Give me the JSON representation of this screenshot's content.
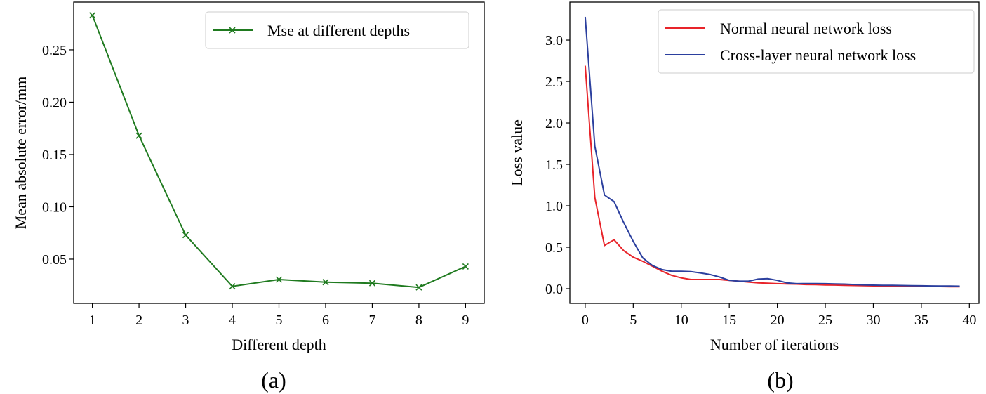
{
  "chart_data": [
    {
      "type": "line",
      "caption": "(a)",
      "xlabel": "Different depth",
      "ylabel": "Mean absolute error/mm",
      "xlim": [
        0.6,
        9.4
      ],
      "ylim": [
        0.0077,
        0.2956
      ],
      "xticks": [
        1,
        2,
        3,
        4,
        5,
        6,
        7,
        8,
        9
      ],
      "yticks": [
        0.05,
        0.1,
        0.15,
        0.2,
        0.25
      ],
      "ytick_labels": [
        "0.05",
        "0.10",
        "0.15",
        "0.20",
        "0.25"
      ],
      "grid": false,
      "legend_position": "top-right",
      "series": [
        {
          "name": "Mse at different depths",
          "color": "#1f7a1f",
          "marker": "x",
          "x": [
            1,
            2,
            3,
            4,
            5,
            6,
            7,
            8,
            9
          ],
          "y": [
            0.283,
            0.168,
            0.073,
            0.024,
            0.0305,
            0.028,
            0.027,
            0.023,
            0.043
          ]
        }
      ]
    },
    {
      "type": "line",
      "caption": "(b)",
      "xlabel": "Number of iterations",
      "ylabel": "Loss value",
      "xlim": [
        -1.6,
        41
      ],
      "ylim": [
        -0.178,
        3.458
      ],
      "xticks": [
        0,
        5,
        10,
        15,
        20,
        25,
        30,
        35,
        40
      ],
      "yticks": [
        0,
        0.5,
        1,
        1.5,
        2,
        2.5,
        3
      ],
      "ytick_labels": [
        "0.0",
        "0.5",
        "1.0",
        "1.5",
        "2.0",
        "2.5",
        "3.0"
      ],
      "grid": false,
      "legend_position": "top-right",
      "series": [
        {
          "name": "Normal neural network loss",
          "color": "#e8242a",
          "y": [
            2.69,
            1.1,
            0.52,
            0.59,
            0.46,
            0.38,
            0.33,
            0.27,
            0.21,
            0.16,
            0.13,
            0.11,
            0.11,
            0.11,
            0.11,
            0.1,
            0.09,
            0.08,
            0.07,
            0.065,
            0.06,
            0.058,
            0.055,
            0.05,
            0.048,
            0.045,
            0.043,
            0.04,
            0.038,
            0.036,
            0.034,
            0.032,
            0.03,
            0.029,
            0.028,
            0.027,
            0.026,
            0.025,
            0.024,
            0.023
          ]
        },
        {
          "name": "Cross-layer neural network loss",
          "color": "#2b3f9e",
          "y": [
            3.28,
            1.72,
            1.13,
            1.05,
            0.8,
            0.57,
            0.37,
            0.28,
            0.23,
            0.21,
            0.21,
            0.205,
            0.19,
            0.17,
            0.14,
            0.1,
            0.09,
            0.09,
            0.115,
            0.12,
            0.1,
            0.07,
            0.06,
            0.062,
            0.062,
            0.06,
            0.058,
            0.055,
            0.05,
            0.046,
            0.042,
            0.04,
            0.04,
            0.038,
            0.036,
            0.035,
            0.033,
            0.032,
            0.031,
            0.03
          ]
        }
      ]
    }
  ]
}
